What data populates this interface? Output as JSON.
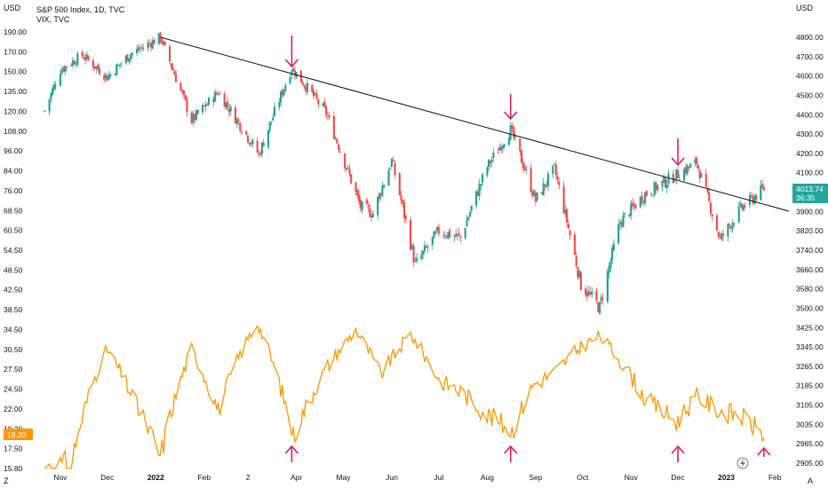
{
  "header": {
    "title": "S&P 500 Index, 1D, TVC",
    "subtitle": "VIX, TVC",
    "left_unit": "USD",
    "right_unit": "USD"
  },
  "axes": {
    "left_ticks": [
      "190.00",
      "170.00",
      "150.00",
      "135.00",
      "120.00",
      "108.00",
      "96.00",
      "84.00",
      "76.00",
      "68.50",
      "60.50",
      "54.50",
      "48.50",
      "42.50",
      "38.50",
      "34.50",
      "30.50",
      "27.50",
      "24.50",
      "22.00",
      "19.20",
      "17.50",
      "15.80"
    ],
    "right_ticks": [
      "4800.00",
      "4700.00",
      "4600.00",
      "4500.00",
      "4400.00",
      "4300.00",
      "4200.00",
      "4100.00",
      "4000.00",
      "3900.00",
      "3820.00",
      "3740.00",
      "3660.00",
      "3580.00",
      "3500.00",
      "3425.00",
      "3345.00",
      "3265.00",
      "3185.00",
      "3105.00",
      "3035.00",
      "2965.00",
      "2905.00"
    ],
    "x_ticks": [
      "Nov",
      "Dec",
      "2022",
      "Feb",
      "2",
      "Apr",
      "May",
      "Jun",
      "Jul",
      "Aug",
      "Sep",
      "Oct",
      "Nov",
      "Dec",
      "2023",
      "Feb"
    ],
    "corner_left": "Z",
    "corner_right": "A"
  },
  "badges": {
    "spx_value": "4013.74",
    "spx_countdown": "36:35",
    "vix_value": "19.20"
  },
  "colors": {
    "up": "#26a69a",
    "down": "#ef5350",
    "vix_line": "#ff9800",
    "vix_badge": "#ff9800",
    "spx_badge": "#26a69a",
    "trendline": "#131722",
    "arrows": "#e91e63"
  },
  "chart_data": {
    "type": "line",
    "series": [
      {
        "name": "S&P 500 Index, 1D, TVC",
        "x": [
          "2021-10-22",
          "2021-11-01",
          "2021-11-15",
          "2021-12-01",
          "2021-12-15",
          "2022-01-04",
          "2022-01-24",
          "2022-02-10",
          "2022-03-08",
          "2022-03-29",
          "2022-04-20",
          "2022-05-12",
          "2022-05-20",
          "2022-06-01",
          "2022-06-16",
          "2022-07-01",
          "2022-07-15",
          "2022-08-01",
          "2022-08-16",
          "2022-09-01",
          "2022-09-13",
          "2022-09-30",
          "2022-10-12",
          "2022-10-25",
          "2022-11-10",
          "2022-11-30",
          "2022-12-13",
          "2022-12-28",
          "2023-01-10",
          "2023-01-25"
        ],
        "values": [
          4400,
          4620,
          4700,
          4580,
          4700,
          4800,
          4350,
          4500,
          4180,
          4630,
          4390,
          3930,
          3900,
          4150,
          3670,
          3820,
          3790,
          4120,
          4305,
          3960,
          4110,
          3585,
          3490,
          3860,
          3990,
          4080,
          4140,
          3780,
          3920,
          4016
        ]
      },
      {
        "name": "VIX, TVC",
        "x": [
          "2021-10-22",
          "2021-11-08",
          "2021-11-26",
          "2021-12-01",
          "2021-12-20",
          "2022-01-04",
          "2022-01-24",
          "2022-02-10",
          "2022-02-24",
          "2022-03-07",
          "2022-03-30",
          "2022-04-20",
          "2022-05-09",
          "2022-05-25",
          "2022-06-13",
          "2022-07-01",
          "2022-07-15",
          "2022-08-01",
          "2022-08-17",
          "2022-08-31",
          "2022-09-13",
          "2022-09-30",
          "2022-10-12",
          "2022-10-25",
          "2022-11-10",
          "2022-11-30",
          "2022-12-13",
          "2022-12-28",
          "2023-01-10",
          "2023-01-25"
        ],
        "values": [
          15.8,
          16.3,
          28.6,
          31.1,
          22.5,
          16.9,
          31.2,
          22.0,
          30.3,
          36.2,
          19.0,
          28.0,
          34.8,
          27.0,
          34.0,
          26.2,
          24.5,
          21.5,
          19.6,
          25.6,
          27.3,
          31.6,
          33.6,
          29.3,
          23.5,
          20.6,
          23.8,
          22.0,
          21.3,
          19.2
        ]
      }
    ],
    "x_label": "",
    "y_label_left": "USD",
    "y_label_right": "USD",
    "ylim_left": [
      15.8,
      190
    ],
    "ylim_right": [
      2905,
      4800
    ],
    "y_scale": "log",
    "xlim": [
      "2021-10-15",
      "2023-02-10"
    ],
    "grid": false,
    "trendline": {
      "from": [
        "2022-01-04",
        4800
      ],
      "to": [
        "2023-02-10",
        3910
      ]
    },
    "arrows_down_at": [
      "2022-03-29",
      "2022-08-16",
      "2022-12-01"
    ],
    "arrows_up_at": [
      "2022-03-29",
      "2022-08-16",
      "2022-12-01",
      "2023-01-25"
    ]
  }
}
